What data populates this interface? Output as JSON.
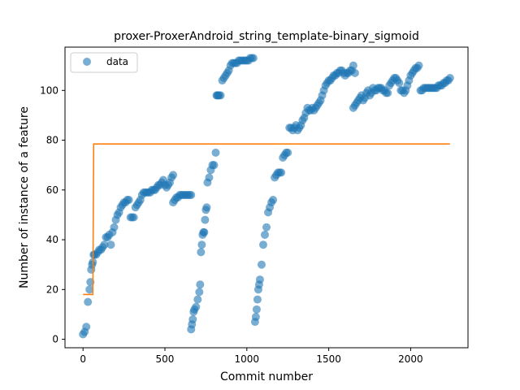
{
  "chart_data": {
    "type": "scatter",
    "title": "proxer-ProxerAndroid_string_template-binary_sigmoid",
    "xlabel": "Commit number",
    "ylabel": "Number of instance of a feature",
    "xlim": [
      -110,
      2350
    ],
    "ylim": [
      -3.4,
      117.4
    ],
    "xticks": [
      0,
      500,
      1000,
      1500,
      2000
    ],
    "yticks": [
      0,
      20,
      40,
      60,
      80,
      100
    ],
    "grid": false,
    "legend": {
      "placement": "top-left",
      "entries": [
        "data"
      ]
    },
    "colors": {
      "data": "#1f77b4",
      "fit": "#ff7f0e"
    },
    "series": [
      {
        "name": "data",
        "kind": "scatter",
        "segments": [
          {
            "x": [
              0,
              10,
              20,
              30,
              40,
              45,
              50,
              55,
              60,
              65,
              70,
              80,
              90,
              100,
              110,
              120,
              130,
              140,
              150,
              160,
              170,
              180,
              190,
              200,
              210,
              220,
              230,
              240,
              250,
              260,
              270,
              280,
              290,
              300,
              310,
              320,
              330,
              340,
              350,
              360,
              370,
              380,
              390,
              400,
              410,
              420,
              430,
              440,
              450,
              460,
              470,
              480,
              490,
              500,
              510,
              520,
              530,
              540,
              550
            ],
            "y": [
              2,
              3,
              5,
              15,
              20,
              23,
              28,
              30,
              31,
              34,
              34,
              34,
              35,
              36,
              36,
              37,
              38,
              41,
              41,
              42,
              38,
              43,
              45,
              48,
              50,
              51,
              53,
              54,
              55,
              55,
              56,
              56,
              49,
              49,
              49,
              53,
              54,
              55,
              56,
              58,
              59,
              59,
              59,
              59,
              59,
              60,
              60,
              60,
              61,
              62,
              62,
              63,
              64,
              62,
              61,
              62,
              63,
              65,
              66
            ]
          },
          {
            "x": [
              550,
              560,
              570,
              580,
              590,
              600,
              610,
              620,
              630,
              640,
              650,
              660
            ],
            "y": [
              55,
              56,
              57,
              57,
              58,
              58,
              58,
              58,
              58,
              58,
              58,
              58
            ]
          },
          {
            "x": [
              660,
              665,
              670,
              675,
              680,
              690,
              700,
              710,
              715,
              720,
              725,
              730,
              735,
              740,
              745,
              750,
              755,
              760,
              770,
              780,
              790,
              800,
              810
            ],
            "y": [
              4,
              6,
              8,
              11,
              12,
              13,
              16,
              19,
              22,
              35,
              38,
              42,
              43,
              43,
              48,
              52,
              53,
              63,
              65,
              68,
              70,
              70,
              75
            ]
          },
          {
            "x": [
              815,
              820,
              825,
              830,
              840,
              850,
              860,
              870,
              880,
              890,
              900,
              910,
              920,
              930,
              940,
              950,
              960,
              970,
              980,
              990,
              1000,
              1010,
              1020,
              1030,
              1040
            ],
            "y": [
              98,
              98,
              98,
              98,
              98,
              104,
              105,
              106,
              107,
              108,
              110,
              111,
              111,
              111,
              111,
              112,
              112,
              112,
              112,
              112,
              112,
              112,
              113,
              113,
              113
            ]
          },
          {
            "x": [
              1050,
              1055,
              1060,
              1065,
              1070,
              1075,
              1080,
              1090,
              1100,
              1110,
              1120,
              1130,
              1140,
              1150,
              1160,
              1170,
              1180,
              1190,
              1200,
              1210,
              1220,
              1230,
              1240,
              1250
            ],
            "y": [
              7,
              9,
              12,
              16,
              20,
              22,
              24,
              30,
              38,
              42,
              45,
              51,
              53,
              55,
              56,
              65,
              66,
              67,
              67,
              67,
              73,
              74,
              75,
              75
            ]
          },
          {
            "x": [
              1260,
              1270,
              1280,
              1290,
              1300,
              1310,
              1320,
              1330,
              1340,
              1350,
              1360,
              1370,
              1380,
              1390,
              1400,
              1410,
              1420,
              1430,
              1440,
              1450,
              1460,
              1470,
              1480,
              1490,
              1500,
              1510,
              1520,
              1530,
              1540,
              1550,
              1560,
              1570,
              1580,
              1590,
              1600,
              1610,
              1620,
              1630,
              1640,
              1650,
              1660
            ],
            "y": [
              85,
              85,
              84,
              85,
              86,
              84,
              85,
              86,
              88,
              89,
              91,
              93,
              92,
              92,
              93,
              92,
              93,
              94,
              95,
              96,
              98,
              100,
              102,
              103,
              104,
              104,
              105,
              106,
              106,
              107,
              107,
              108,
              108,
              107,
              106,
              107,
              107,
              108,
              108,
              110,
              107
            ]
          },
          {
            "x": [
              1650,
              1660,
              1670,
              1680,
              1690,
              1700,
              1710,
              1720,
              1730,
              1740,
              1750,
              1760,
              1770,
              1780,
              1790,
              1800,
              1810,
              1820,
              1830,
              1840,
              1850,
              1860,
              1870,
              1880,
              1890,
              1900,
              1910,
              1920,
              1930,
              1940,
              1950,
              1960,
              1970,
              1980,
              1990,
              2000,
              2010,
              2020,
              2030,
              2040,
              2050
            ],
            "y": [
              93,
              94,
              95,
              96,
              97,
              98,
              96,
              97,
              99,
              100,
              98,
              99,
              101,
              100,
              100,
              101,
              101,
              101,
              100,
              100,
              99,
              99,
              102,
              103,
              104,
              105,
              105,
              104,
              103,
              100,
              100,
              99,
              100,
              102,
              104,
              106,
              107,
              108,
              109,
              109,
              110
            ]
          },
          {
            "x": [
              2060,
              2070,
              2080,
              2090,
              2100,
              2110,
              2120,
              2130,
              2140,
              2150,
              2160,
              2170,
              2180,
              2190,
              2200,
              2210,
              2220,
              2230,
              2240
            ],
            "y": [
              100,
              100,
              101,
              101,
              101,
              101,
              101,
              101,
              101,
              101,
              101,
              102,
              102,
              102,
              103,
              103,
              104,
              104,
              105
            ]
          }
        ]
      },
      {
        "kind": "step-line",
        "x": [
          0,
          60,
          65,
          2240
        ],
        "y": [
          18,
          18,
          78.5,
          78.5
        ]
      }
    ]
  }
}
